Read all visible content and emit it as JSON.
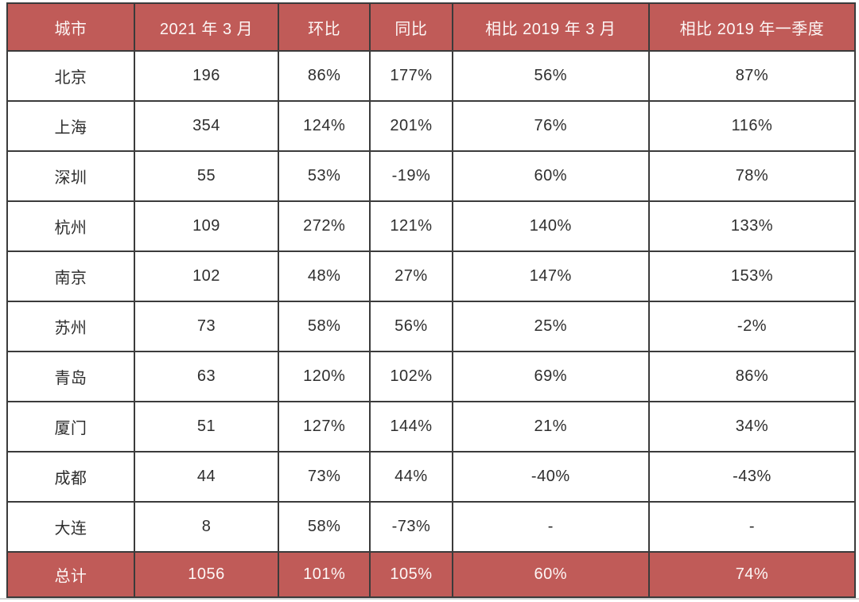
{
  "colors": {
    "header_bg": "#c05b58",
    "header_text": "#fdf7f6",
    "body_text": "#2e2e2e",
    "grid_line": "#3b3b3b",
    "total_row_bg": "#c05b58"
  },
  "table": {
    "columns": [
      "城市",
      "2021 年 3 月",
      "环比",
      "同比",
      "相比 2019 年 3 月",
      "相比 2019 年一季度"
    ],
    "rows": [
      [
        "北京",
        "196",
        "86%",
        "177%",
        "56%",
        "87%"
      ],
      [
        "上海",
        "354",
        "124%",
        "201%",
        "76%",
        "116%"
      ],
      [
        "深圳",
        "55",
        "53%",
        "-19%",
        "60%",
        "78%"
      ],
      [
        "杭州",
        "109",
        "272%",
        "121%",
        "140%",
        "133%"
      ],
      [
        "南京",
        "102",
        "48%",
        "27%",
        "147%",
        "153%"
      ],
      [
        "苏州",
        "73",
        "58%",
        "56%",
        "25%",
        "-2%"
      ],
      [
        "青岛",
        "63",
        "120%",
        "102%",
        "69%",
        "86%"
      ],
      [
        "厦门",
        "51",
        "127%",
        "144%",
        "21%",
        "34%"
      ],
      [
        "成都",
        "44",
        "73%",
        "44%",
        "-40%",
        "-43%"
      ],
      [
        "大连",
        "8",
        "58%",
        "-73%",
        "-",
        "-"
      ]
    ],
    "total_row": [
      "总计",
      "1056",
      "101%",
      "105%",
      "60%",
      "74%"
    ]
  },
  "chart_data": {
    "type": "table",
    "title": "",
    "columns": [
      "城市",
      "2021 年 3 月",
      "环比",
      "同比",
      "相比 2019 年 3 月",
      "相比 2019 年一季度"
    ],
    "rows": [
      {
        "city": "北京",
        "march_2021": 196,
        "mom": "86%",
        "yoy": "177%",
        "vs_2019_march": "56%",
        "vs_2019_q1": "87%"
      },
      {
        "city": "上海",
        "march_2021": 354,
        "mom": "124%",
        "yoy": "201%",
        "vs_2019_march": "76%",
        "vs_2019_q1": "116%"
      },
      {
        "city": "深圳",
        "march_2021": 55,
        "mom": "53%",
        "yoy": "-19%",
        "vs_2019_march": "60%",
        "vs_2019_q1": "78%"
      },
      {
        "city": "杭州",
        "march_2021": 109,
        "mom": "272%",
        "yoy": "121%",
        "vs_2019_march": "140%",
        "vs_2019_q1": "133%"
      },
      {
        "city": "南京",
        "march_2021": 102,
        "mom": "48%",
        "yoy": "27%",
        "vs_2019_march": "147%",
        "vs_2019_q1": "153%"
      },
      {
        "city": "苏州",
        "march_2021": 73,
        "mom": "58%",
        "yoy": "56%",
        "vs_2019_march": "25%",
        "vs_2019_q1": "-2%"
      },
      {
        "city": "青岛",
        "march_2021": 63,
        "mom": "120%",
        "yoy": "102%",
        "vs_2019_march": "69%",
        "vs_2019_q1": "86%"
      },
      {
        "city": "厦门",
        "march_2021": 51,
        "mom": "127%",
        "yoy": "144%",
        "vs_2019_march": "21%",
        "vs_2019_q1": "34%"
      },
      {
        "city": "成都",
        "march_2021": 44,
        "mom": "73%",
        "yoy": "44%",
        "vs_2019_march": "-40%",
        "vs_2019_q1": "-43%"
      },
      {
        "city": "大连",
        "march_2021": 8,
        "mom": "58%",
        "yoy": "-73%",
        "vs_2019_march": "-",
        "vs_2019_q1": "-"
      },
      {
        "city": "总计",
        "march_2021": 1056,
        "mom": "101%",
        "yoy": "105%",
        "vs_2019_march": "60%",
        "vs_2019_q1": "74%"
      }
    ]
  }
}
